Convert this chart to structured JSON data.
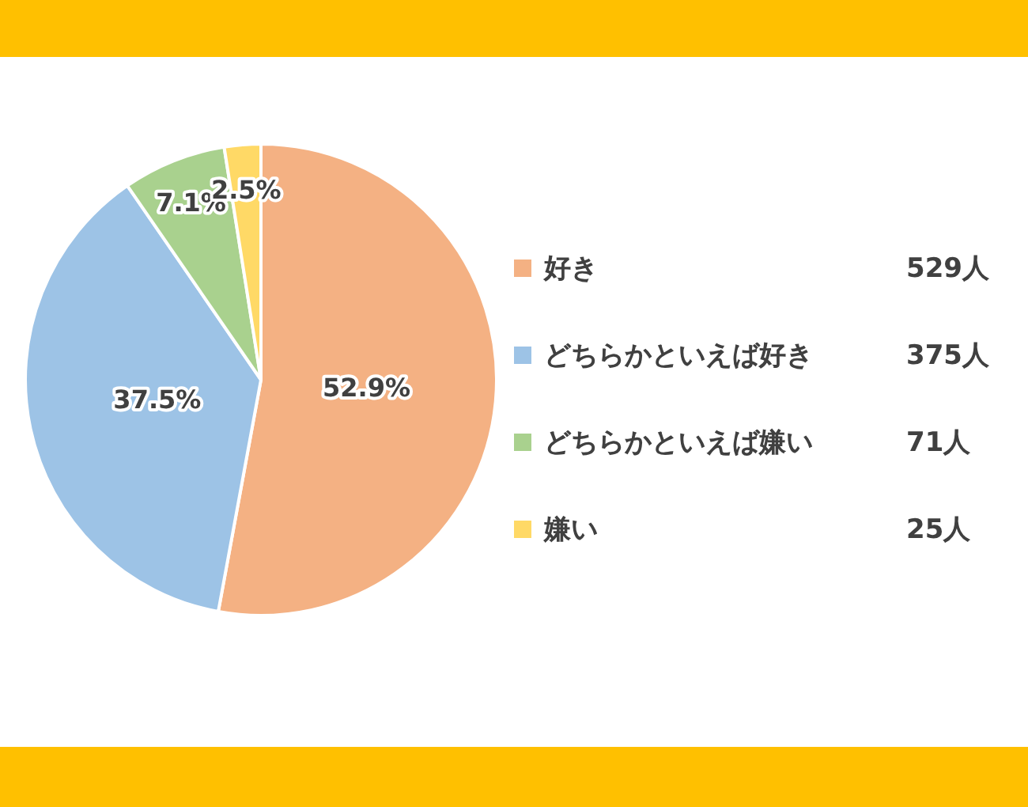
{
  "chart_data": {
    "type": "pie",
    "categories": [
      "好き",
      "どちらかといえば好き",
      "どちらかといえば嫌い",
      "嫌い"
    ],
    "values": [
      52.9,
      37.5,
      7.1,
      2.5
    ],
    "colors": [
      "#f4b183",
      "#9dc3e6",
      "#a9d18e",
      "#ffd966"
    ],
    "value_labels": [
      "52.9%",
      "37.5%",
      "7.1%",
      "2.5%"
    ],
    "annotations": [
      "529人",
      "375人",
      "71人",
      "25人"
    ],
    "legend": "right"
  }
}
